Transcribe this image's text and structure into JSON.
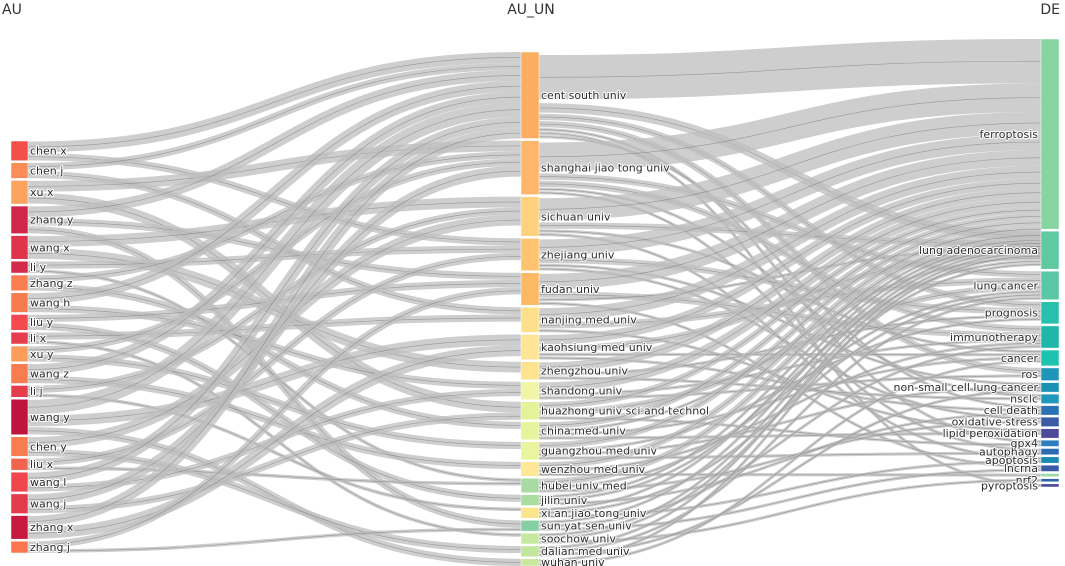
{
  "chart_data": {
    "type": "sankey",
    "columns": [
      "AU",
      "AU_UN",
      "DE"
    ],
    "nodes": {
      "AU": [
        {
          "name": "chen x",
          "color": "#f4504a"
        },
        {
          "name": "chen j",
          "color": "#fb8e58"
        },
        {
          "name": "xu x",
          "color": "#fba45f"
        },
        {
          "name": "zhang y",
          "color": "#d0264b"
        },
        {
          "name": "wang x",
          "color": "#e0344c"
        },
        {
          "name": "li y",
          "color": "#d42a4b"
        },
        {
          "name": "zhang z",
          "color": "#fa7e52"
        },
        {
          "name": "wang h",
          "color": "#f87a4f"
        },
        {
          "name": "liu y",
          "color": "#f3494f"
        },
        {
          "name": "li x",
          "color": "#e63d4d"
        },
        {
          "name": "xu y",
          "color": "#fa9c5a"
        },
        {
          "name": "wang z",
          "color": "#f97c4e"
        },
        {
          "name": "li j",
          "color": "#e63d4d"
        },
        {
          "name": "wang y",
          "color": "#c0143f"
        },
        {
          "name": "chen y",
          "color": "#f97c4e"
        },
        {
          "name": "liu x",
          "color": "#f36350"
        },
        {
          "name": "wang l",
          "color": "#f0464d"
        },
        {
          "name": "wang j",
          "color": "#e33a4c"
        },
        {
          "name": "zhang x",
          "color": "#c8193f"
        },
        {
          "name": "zhang j",
          "color": "#f9764e"
        }
      ],
      "AU_UN": [
        {
          "name": "cent south univ",
          "color": "#fbad61"
        },
        {
          "name": "shanghai jiao tong univ",
          "color": "#fdb66a"
        },
        {
          "name": "sichuan univ",
          "color": "#fdd17e"
        },
        {
          "name": "zhejiang univ",
          "color": "#fdc46f"
        },
        {
          "name": "fudan univ",
          "color": "#fcb862"
        },
        {
          "name": "nanjing med univ",
          "color": "#fee08b"
        },
        {
          "name": "kaohsiung med univ",
          "color": "#fee596"
        },
        {
          "name": "zhengzhou univ",
          "color": "#fee38f"
        },
        {
          "name": "shandong univ",
          "color": "#f0f5a8"
        },
        {
          "name": "huazhong univ sci and technol",
          "color": "#e4f39a"
        },
        {
          "name": "china med univ",
          "color": "#e6f49d"
        },
        {
          "name": "guangzhou med univ",
          "color": "#eaf49e"
        },
        {
          "name": "wenzhou med univ",
          "color": "#fee796"
        },
        {
          "name": "hubei univ med",
          "color": "#a7dba3"
        },
        {
          "name": "jilin univ",
          "color": "#a9dd9f"
        },
        {
          "name": "xi an jiao tong univ",
          "color": "#fde48f"
        },
        {
          "name": "sun yat sen univ",
          "color": "#86cfa5"
        },
        {
          "name": "soochow univ",
          "color": "#c5e79e"
        },
        {
          "name": "dalian med univ",
          "color": "#c4e69c"
        },
        {
          "name": "wuhan univ",
          "color": "#c7e89e"
        }
      ],
      "DE": [
        {
          "name": "ferroptosis",
          "color": "#86d5a1"
        },
        {
          "name": "lung adenocarcinoma",
          "color": "#5fc9a1"
        },
        {
          "name": "lung cancer",
          "color": "#59c7a3"
        },
        {
          "name": "prognosis",
          "color": "#27c0ad"
        },
        {
          "name": "immunotherapy",
          "color": "#20b7a8"
        },
        {
          "name": "cancer",
          "color": "#1cc4b0"
        },
        {
          "name": "ros",
          "color": "#1f95b8"
        },
        {
          "name": "non-small cell lung cancer",
          "color": "#1b92b3"
        },
        {
          "name": "nsclc",
          "color": "#2098b9"
        },
        {
          "name": "cell death",
          "color": "#2b72b5"
        },
        {
          "name": "oxidative stress",
          "color": "#3b5ba5"
        },
        {
          "name": "lipid peroxidation",
          "color": "#4e4a9a"
        },
        {
          "name": "gpx4",
          "color": "#2d7dc0"
        },
        {
          "name": "autophagy",
          "color": "#2b6cb4"
        },
        {
          "name": "apoptosis",
          "color": "#1a8bb0"
        },
        {
          "name": "lncrna",
          "color": "#3a59a6"
        },
        {
          "name": "",
          "color": "#9fd9a6"
        },
        {
          "name": "nrf2",
          "color": "#2c63b0"
        },
        {
          "name": "pyroptosis",
          "color": "#4b4b9b"
        }
      ]
    },
    "values": {
      "AU": [
        5,
        4,
        6,
        7,
        6,
        3,
        4,
        5,
        4,
        3,
        4,
        5,
        3,
        9,
        5,
        3,
        5,
        5,
        6,
        3
      ],
      "AU_UN": [
        24,
        15,
        11,
        9,
        9,
        7,
        7,
        5,
        5,
        5,
        5,
        5,
        4,
        4,
        3,
        3,
        3,
        3,
        3,
        2
      ],
      "DE": [
        60,
        12,
        9,
        7,
        7,
        5,
        4,
        3,
        3,
        3,
        3,
        3,
        2,
        2,
        2,
        2,
        1,
        1,
        1
      ]
    },
    "links": {
      "AU_to_AU_UN": [
        [
          0,
          0,
          3
        ],
        [
          0,
          3,
          2
        ],
        [
          1,
          0,
          2
        ],
        [
          1,
          5,
          2
        ],
        [
          2,
          1,
          3
        ],
        [
          2,
          9,
          3
        ],
        [
          3,
          0,
          3
        ],
        [
          3,
          4,
          2
        ],
        [
          3,
          16,
          2
        ],
        [
          4,
          2,
          3
        ],
        [
          4,
          7,
          3
        ],
        [
          5,
          3,
          2
        ],
        [
          5,
          13,
          1
        ],
        [
          6,
          1,
          2
        ],
        [
          6,
          10,
          2
        ],
        [
          7,
          0,
          3
        ],
        [
          7,
          8,
          2
        ],
        [
          8,
          4,
          2
        ],
        [
          8,
          14,
          2
        ],
        [
          9,
          5,
          2
        ],
        [
          9,
          17,
          1
        ],
        [
          10,
          1,
          2
        ],
        [
          10,
          11,
          2
        ],
        [
          11,
          0,
          3
        ],
        [
          11,
          12,
          2
        ],
        [
          12,
          2,
          2
        ],
        [
          12,
          15,
          1
        ],
        [
          13,
          0,
          4
        ],
        [
          13,
          6,
          3
        ],
        [
          13,
          19,
          2
        ],
        [
          14,
          2,
          3
        ],
        [
          14,
          18,
          2
        ],
        [
          15,
          3,
          2
        ],
        [
          15,
          13,
          1
        ],
        [
          16,
          0,
          3
        ],
        [
          16,
          8,
          2
        ],
        [
          17,
          1,
          3
        ],
        [
          17,
          9,
          2
        ],
        [
          18,
          0,
          3
        ],
        [
          18,
          6,
          3
        ],
        [
          19,
          4,
          2
        ],
        [
          19,
          16,
          1
        ]
      ],
      "AU_UN_to_DE": [
        [
          0,
          0,
          14
        ],
        [
          0,
          1,
          3
        ],
        [
          0,
          3,
          2
        ],
        [
          0,
          6,
          2
        ],
        [
          0,
          12,
          1
        ],
        [
          0,
          18,
          1
        ],
        [
          0,
          9,
          1
        ],
        [
          1,
          0,
          9
        ],
        [
          1,
          2,
          2
        ],
        [
          1,
          4,
          2
        ],
        [
          1,
          8,
          1
        ],
        [
          1,
          13,
          1
        ],
        [
          2,
          0,
          7
        ],
        [
          2,
          1,
          2
        ],
        [
          2,
          5,
          1
        ],
        [
          2,
          14,
          1
        ],
        [
          3,
          0,
          5
        ],
        [
          3,
          3,
          2
        ],
        [
          3,
          7,
          1
        ],
        [
          3,
          10,
          1
        ],
        [
          4,
          0,
          5
        ],
        [
          4,
          4,
          2
        ],
        [
          4,
          1,
          1
        ],
        [
          4,
          15,
          1
        ],
        [
          5,
          0,
          4
        ],
        [
          5,
          2,
          2
        ],
        [
          5,
          11,
          1
        ],
        [
          6,
          0,
          3
        ],
        [
          6,
          1,
          2
        ],
        [
          6,
          5,
          1
        ],
        [
          6,
          9,
          1
        ],
        [
          7,
          0,
          3
        ],
        [
          7,
          3,
          1
        ],
        [
          7,
          8,
          1
        ],
        [
          8,
          0,
          3
        ],
        [
          8,
          4,
          1
        ],
        [
          8,
          6,
          1
        ],
        [
          9,
          0,
          2
        ],
        [
          9,
          2,
          2
        ],
        [
          9,
          12,
          1
        ],
        [
          10,
          0,
          2
        ],
        [
          10,
          1,
          1
        ],
        [
          10,
          5,
          1
        ],
        [
          10,
          11,
          1
        ],
        [
          11,
          0,
          2
        ],
        [
          11,
          3,
          1
        ],
        [
          11,
          7,
          1
        ],
        [
          11,
          13,
          1
        ],
        [
          12,
          0,
          2
        ],
        [
          12,
          4,
          1
        ],
        [
          12,
          16,
          1
        ],
        [
          13,
          0,
          2
        ],
        [
          13,
          2,
          1
        ],
        [
          13,
          10,
          1
        ],
        [
          14,
          0,
          1
        ],
        [
          14,
          1,
          1
        ],
        [
          14,
          9,
          1
        ],
        [
          15,
          0,
          1
        ],
        [
          15,
          2,
          1
        ],
        [
          15,
          14,
          1
        ],
        [
          16,
          0,
          1
        ],
        [
          16,
          4,
          1
        ],
        [
          16,
          15,
          1
        ],
        [
          17,
          0,
          1
        ],
        [
          17,
          1,
          1
        ],
        [
          17,
          17,
          1
        ],
        [
          18,
          0,
          1
        ],
        [
          18,
          2,
          1
        ],
        [
          18,
          7,
          1
        ],
        [
          19,
          0,
          1
        ],
        [
          19,
          5,
          1
        ]
      ]
    },
    "link_color": "#bdbdbd"
  }
}
